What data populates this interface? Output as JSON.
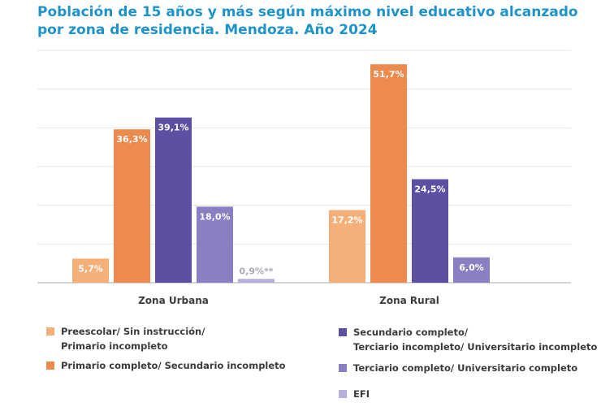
{
  "title": "Población de 15 años y más según máximo nivel educativo alcanzado por zona de residencia. Mendoza. Año 2024",
  "chart_data": {
    "type": "bar",
    "title": "Población de 15 años y más según máximo nivel educativo alcanzado por zona de residencia. Mendoza. Año 2024",
    "categories": [
      "Zona Urbana",
      "Zona Rural"
    ],
    "ylim": [
      0,
      55
    ],
    "grid": true,
    "legend_position": "bottom",
    "series": [
      {
        "name": "Preescolar/ Sin instrucción/\nPrimario incompleto",
        "color": "#f5b07a",
        "values": [
          5.7,
          17.2
        ],
        "labels": [
          "5,7%",
          "17,2%"
        ]
      },
      {
        "name": "Primario completo/ Secundario incompleto",
        "color": "#ee8a4e",
        "values": [
          36.3,
          51.7
        ],
        "labels": [
          "36,3%",
          "51,7%"
        ]
      },
      {
        "name": "Secundario completo/\nTerciario incompleto/ Universitario incompleto",
        "color": "#5e4fa2",
        "values": [
          39.1,
          24.5
        ],
        "labels": [
          "39,1%",
          "24,5%"
        ]
      },
      {
        "name": "Terciario completo/ Universitario completo",
        "color": "#8a7fc2",
        "values": [
          18.0,
          6.0
        ],
        "labels": [
          "18,0%",
          "6,0%"
        ]
      },
      {
        "name": "EFI",
        "color": "#b6afdb",
        "values": [
          0.9,
          null
        ],
        "labels": [
          "0,9%**",
          ""
        ]
      }
    ]
  }
}
